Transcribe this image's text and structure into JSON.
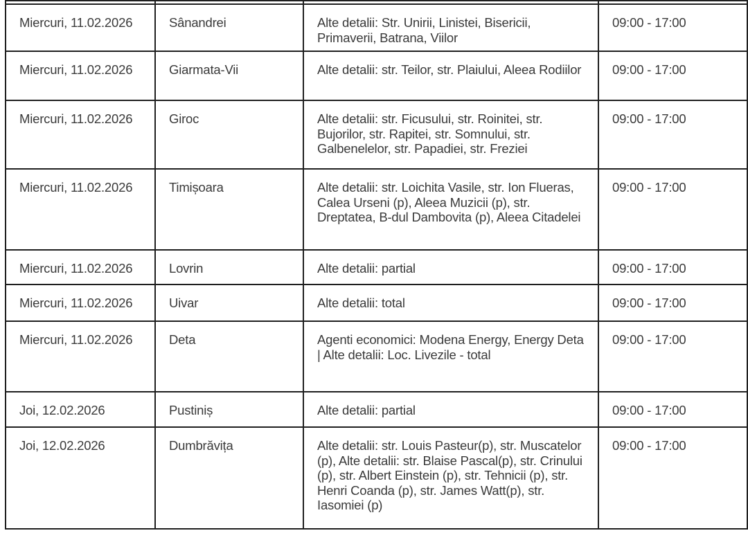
{
  "meta": {
    "description_language": "ro",
    "border_color": "#1f1f1f",
    "text_color": "#3a3a3a"
  },
  "table": {
    "columns": [
      "date",
      "locality",
      "details",
      "interval"
    ],
    "rows": [
      {
        "date": "Miercuri, 11.02.2026",
        "locality": "Sânandrei",
        "details": "Alte detalii: Str. Unirii, Linistei, Bisericii, Primaverii, Batrana, Viilor",
        "interval": "09:00 - 17:00"
      },
      {
        "date": "Miercuri, 11.02.2026",
        "locality": "Giarmata-Vii",
        "details": "Alte detalii: str. Teilor, str. Plaiului, Aleea Rodiilor",
        "interval": "09:00 - 17:00"
      },
      {
        "date": "Miercuri, 11.02.2026",
        "locality": "Giroc",
        "details": "Alte detalii: str. Ficusului, str. Roinitei, str. Bujorilor, str. Rapitei, str. Somnului, str. Galbenelelor, str. Papadiei, str. Freziei",
        "interval": "09:00 - 17:00"
      },
      {
        "date": "Miercuri, 11.02.2026",
        "locality": "Timișoara",
        "details": "Alte detalii: str. Loichita Vasile, str. Ion Flueras, Calea Urseni (p), Aleea Muzicii (p), str. Dreptatea, B-dul Dambovita (p), Aleea Citadelei",
        "interval": "09:00 - 17:00"
      },
      {
        "date": "Miercuri, 11.02.2026",
        "locality": "Lovrin",
        "details": "Alte detalii: partial",
        "interval": "09:00 - 17:00"
      },
      {
        "date": "Miercuri, 11.02.2026",
        "locality": "Uivar",
        "details": "Alte detalii: total",
        "interval": "09:00 - 17:00"
      },
      {
        "date": "Miercuri, 11.02.2026",
        "locality": "Deta",
        "details": "Agenti economici: Modena Energy, Energy Deta | Alte detalii: Loc. Livezile - total",
        "interval": "09:00 - 17:00"
      },
      {
        "date": "Joi, 12.02.2026",
        "locality": "Pustiniș",
        "details": "Alte detalii: partial",
        "interval": "09:00 - 17:00"
      },
      {
        "date": "Joi, 12.02.2026",
        "locality": "Dumbrăvița",
        "details": "Alte detalii: str. Louis Pasteur(p), str. Muscatelor (p), Alte detalii: str. Blaise Pascal(p), str. Crinului (p), str. Albert Einstein (p), str. Tehnicii (p), str. Henri Coanda (p), str. James Watt(p), str. Iasomiei (p)",
        "interval": "09:00 - 17:00"
      }
    ]
  }
}
